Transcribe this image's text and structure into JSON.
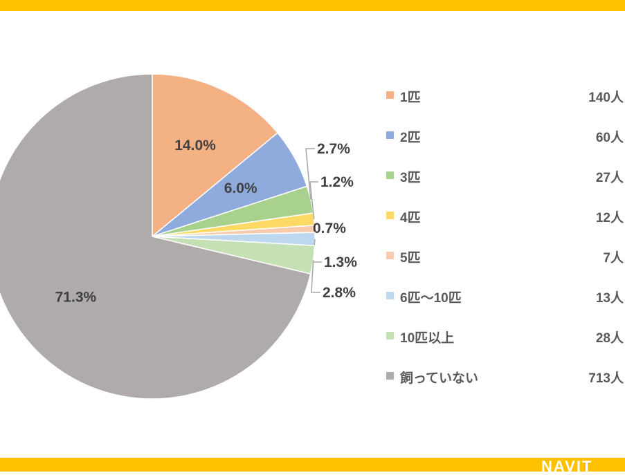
{
  "brand": {
    "logo": "NAVIT",
    "bar_color": "#FFC000"
  },
  "chart_data": {
    "type": "pie",
    "start_angle": "12 o'clock",
    "direction": "clockwise",
    "legend_placement": "right",
    "slices": [
      {
        "name": "1匹",
        "count": "140人",
        "value": 140,
        "pct": "14.0%",
        "color": "#F4B183"
      },
      {
        "name": "2匹",
        "count": "60人",
        "value": 60,
        "pct": "6.0%",
        "color": "#8FAADC"
      },
      {
        "name": "3匹",
        "count": "27人",
        "value": 27,
        "pct": "2.7%",
        "color": "#A9D18E"
      },
      {
        "name": "4匹",
        "count": "12人",
        "value": 12,
        "pct": "1.2%",
        "color": "#FFD966"
      },
      {
        "name": "5匹",
        "count": "7人",
        "value": 7,
        "pct": "0.7%",
        "color": "#F8CBAD"
      },
      {
        "name": "6匹～10匹",
        "count": "13人",
        "value": 13,
        "pct": "1.3%",
        "color": "#BDD7EE"
      },
      {
        "name": "10匹以上",
        "count": "28人",
        "value": 28,
        "pct": "2.8%",
        "color": "#C5E0B4"
      },
      {
        "name": "飼っていない",
        "count": "713人",
        "value": 713,
        "pct": "71.3%",
        "color": "#AFABAB"
      }
    ]
  }
}
